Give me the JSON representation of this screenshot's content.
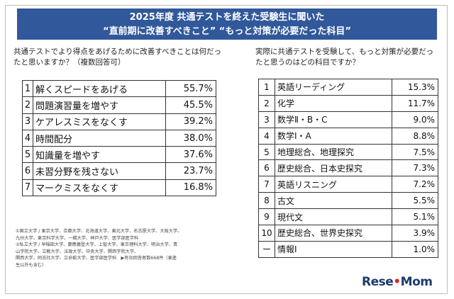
{
  "banner": {
    "line1": "2025年度 共通テストを終えた受験生に聞いた",
    "line2": "“直前期に改善すべきこと” “もっと対策が必要だった科目”"
  },
  "left": {
    "question": "共通テストでより得点をあげるために改善すべきことは何だったと思いますか？（複数回答可）"
  },
  "right": {
    "question": "実際に共通テストを受験して、もっと対策が必要だったと思うのはどの科目ですか？"
  },
  "chart_data": [
    {
      "type": "table",
      "columns": [
        "rank",
        "item",
        "percent"
      ],
      "rows": [
        {
          "rank": "1",
          "item": "解くスピードをあげる",
          "value": 55.7,
          "label": "55.7%"
        },
        {
          "rank": "2",
          "item": "問題演習量を増やす",
          "value": 45.5,
          "label": "45.5%"
        },
        {
          "rank": "3",
          "item": "ケアレスミスをなくす",
          "value": 39.2,
          "label": "39.2%"
        },
        {
          "rank": "4",
          "item": "時間配分",
          "value": 38.0,
          "label": "38.0%"
        },
        {
          "rank": "5",
          "item": "知識量を増やす",
          "value": 37.6,
          "label": "37.6%"
        },
        {
          "rank": "6",
          "item": "未習分野を残さない",
          "value": 23.7,
          "label": "23.7%"
        },
        {
          "rank": "7",
          "item": "マークミスをなくす",
          "value": 16.8,
          "label": "16.8%"
        }
      ]
    },
    {
      "type": "table",
      "columns": [
        "rank",
        "item",
        "percent"
      ],
      "rows": [
        {
          "rank": "1",
          "item": "英語リーディング",
          "value": 15.3,
          "label": "15.3%"
        },
        {
          "rank": "2",
          "item": "化学",
          "value": 11.7,
          "label": "11.7%"
        },
        {
          "rank": "3",
          "item": "数学Ⅱ・B・C",
          "value": 9.0,
          "label": "9.0%"
        },
        {
          "rank": "4",
          "item": "数学Ⅰ・A",
          "value": 8.8,
          "label": "8.8%"
        },
        {
          "rank": "5",
          "item": "地理総合、地理探究",
          "value": 7.5,
          "label": "7.5%"
        },
        {
          "rank": "6",
          "item": "歴史総合、日本史探究",
          "value": 7.3,
          "label": "7.3%"
        },
        {
          "rank": "7",
          "item": "英語リスニング",
          "value": 7.2,
          "label": "7.2%"
        },
        {
          "rank": "8",
          "item": "古文",
          "value": 5.5,
          "label": "5.5%"
        },
        {
          "rank": "9",
          "item": "現代文",
          "value": 5.1,
          "label": "5.1%"
        },
        {
          "rank": "10",
          "item": "歴史総合、世界史探究",
          "value": 3.9,
          "label": "3.9%"
        },
        {
          "rank": "ー",
          "item": "情報Ⅰ",
          "value": 1.0,
          "label": "1.0%"
        }
      ]
    }
  ],
  "footnote": {
    "line1": "①国立大学 / 東京大学、京都大学、北海道大学、東北大学、名古屋大学、大阪大学、",
    "line2": "九州大学、東京科学大学、一橋大学、神戸大学、医学部医学科",
    "line3": "②私立大学 / 早稲田大学、慶應義塾大学、上智大学、東京理科大学、明治大学、青",
    "line4": "山学院大学、立教大学、法政大学、中央大学、関西学院大学、",
    "line5": "関西大学、同志社大学、立命館大学、医学部医学科　▶有効回答者数668件（東進",
    "line6": "生以外も含む）"
  },
  "logo": {
    "part1": "Rese",
    "part2": "Mom"
  }
}
